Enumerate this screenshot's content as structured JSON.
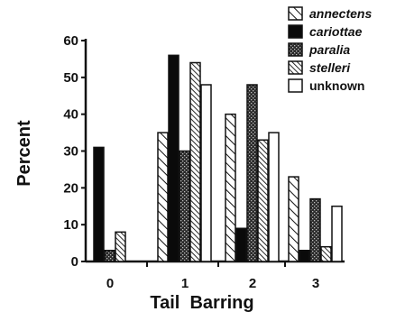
{
  "chart_data": {
    "type": "bar",
    "xlabel": "Tail  Barring",
    "ylabel": "Percent",
    "ylim": [
      0,
      60
    ],
    "yticks": [
      0,
      10,
      20,
      30,
      40,
      50,
      60
    ],
    "categories": [
      "0",
      "1",
      "2",
      "3"
    ],
    "legend_position": "top-right",
    "series": [
      {
        "name": "annectens",
        "pattern": "diagonal-hatch",
        "values": [
          0,
          35,
          40,
          23
        ]
      },
      {
        "name": "cariottae",
        "pattern": "solid-black",
        "values": [
          31,
          56,
          9,
          3
        ]
      },
      {
        "name": "paralia",
        "pattern": "dark-stipple",
        "values": [
          3,
          30,
          48,
          17
        ]
      },
      {
        "name": "stelleri",
        "pattern": "dense-hatch",
        "values": [
          8,
          54,
          33,
          4
        ]
      },
      {
        "name": "unknown",
        "pattern": "open-white",
        "values": [
          0,
          48,
          35,
          15
        ]
      }
    ]
  }
}
